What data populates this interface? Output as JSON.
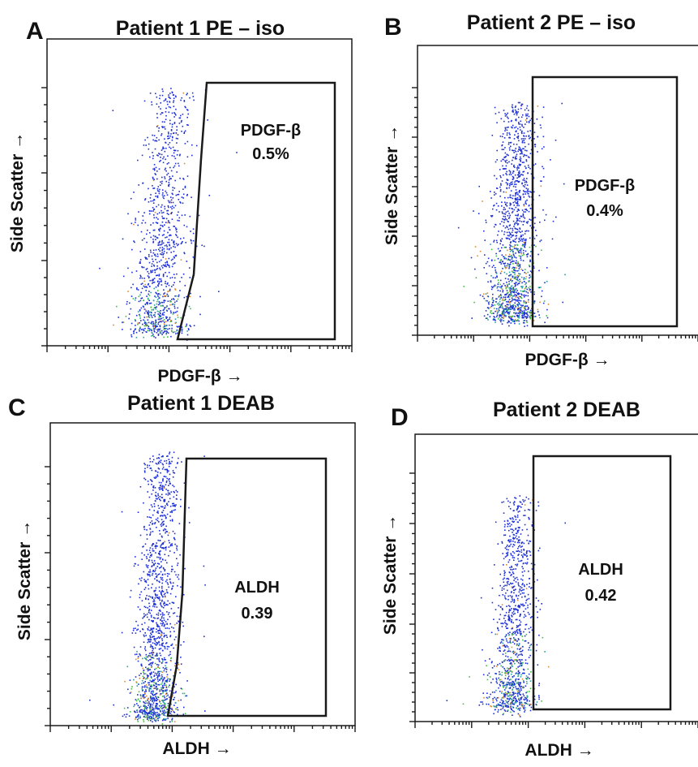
{
  "chart_data": [
    {
      "type": "scatter",
      "panel_letter": "A",
      "title": "Patient 1 PE – iso",
      "xlabel": "PDGF-β →",
      "ylabel": "Side Scatter →",
      "x_scale": "log",
      "gate": {
        "label": "PDGF-β",
        "value": "0.5%"
      },
      "grid": false
    },
    {
      "type": "scatter",
      "panel_letter": "B",
      "title": "Patient 2 PE – iso",
      "xlabel": "PDGF-β →",
      "ylabel": "Side Scatter →",
      "x_scale": "log",
      "gate": {
        "label": "PDGF-β",
        "value": "0.4%"
      },
      "grid": false
    },
    {
      "type": "scatter",
      "panel_letter": "C",
      "title": "Patient 1 DEAB",
      "xlabel": "ALDH →",
      "ylabel": "Side Scatter →",
      "x_scale": "log",
      "gate": {
        "label": "ALDH",
        "value": "0.39"
      },
      "grid": false
    },
    {
      "type": "scatter",
      "panel_letter": "D",
      "title": "Patient 2 DEAB",
      "xlabel": "ALDH →",
      "ylabel": "Side Scatter →",
      "x_scale": "log",
      "gate": {
        "label": "ALDH",
        "value": "0.42"
      },
      "grid": false
    }
  ],
  "colors": {
    "frame": "#1a1a1a",
    "dots_main": "#1c2fd6",
    "dots_mid": "#2aa0a0",
    "dots_dense": "#3fbf3f",
    "dots_hot": "#e08a2a"
  }
}
